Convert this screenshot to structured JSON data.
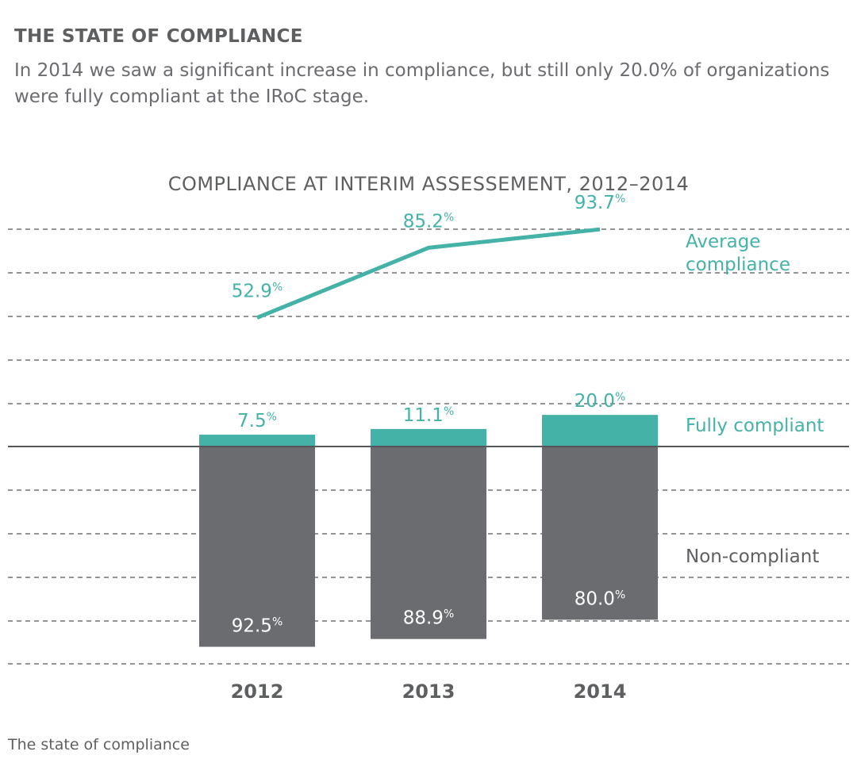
{
  "header": {
    "title": "THE STATE OF COMPLIANCE",
    "subtitle": "In 2014 we saw a significant increase in compliance, but still only 20.0% of organizations were fully compliant at the IRoC stage."
  },
  "caption": "The state of compliance",
  "colors": {
    "teal": "#44b2a6",
    "gray": "#6b6c6f",
    "text": "#5e5f61",
    "grid": "#55565a"
  },
  "chart_data": {
    "type": "bar",
    "title": "COMPLIANCE AT INTERIM ASSESSEMENT, 2012–2014",
    "categories": [
      "2012",
      "2013",
      "2014"
    ],
    "unit": "%",
    "series": [
      {
        "name": "Fully compliant",
        "values": [
          7.5,
          11.1,
          20.0
        ],
        "labels": [
          "7.5",
          "11.1",
          "20.0"
        ]
      },
      {
        "name": "Non-compliant",
        "values": [
          92.5,
          88.9,
          80.0
        ],
        "labels": [
          "92.5",
          "88.9",
          "80.0"
        ]
      },
      {
        "name": "Average compliance",
        "type": "line",
        "values": [
          52.9,
          85.2,
          93.7
        ],
        "labels": [
          "52.9",
          "85.2",
          "93.7"
        ]
      }
    ],
    "legend": [
      "Average compliance",
      "Fully compliant",
      "Non-compliant"
    ],
    "legend_placement": "right",
    "grid": true
  }
}
